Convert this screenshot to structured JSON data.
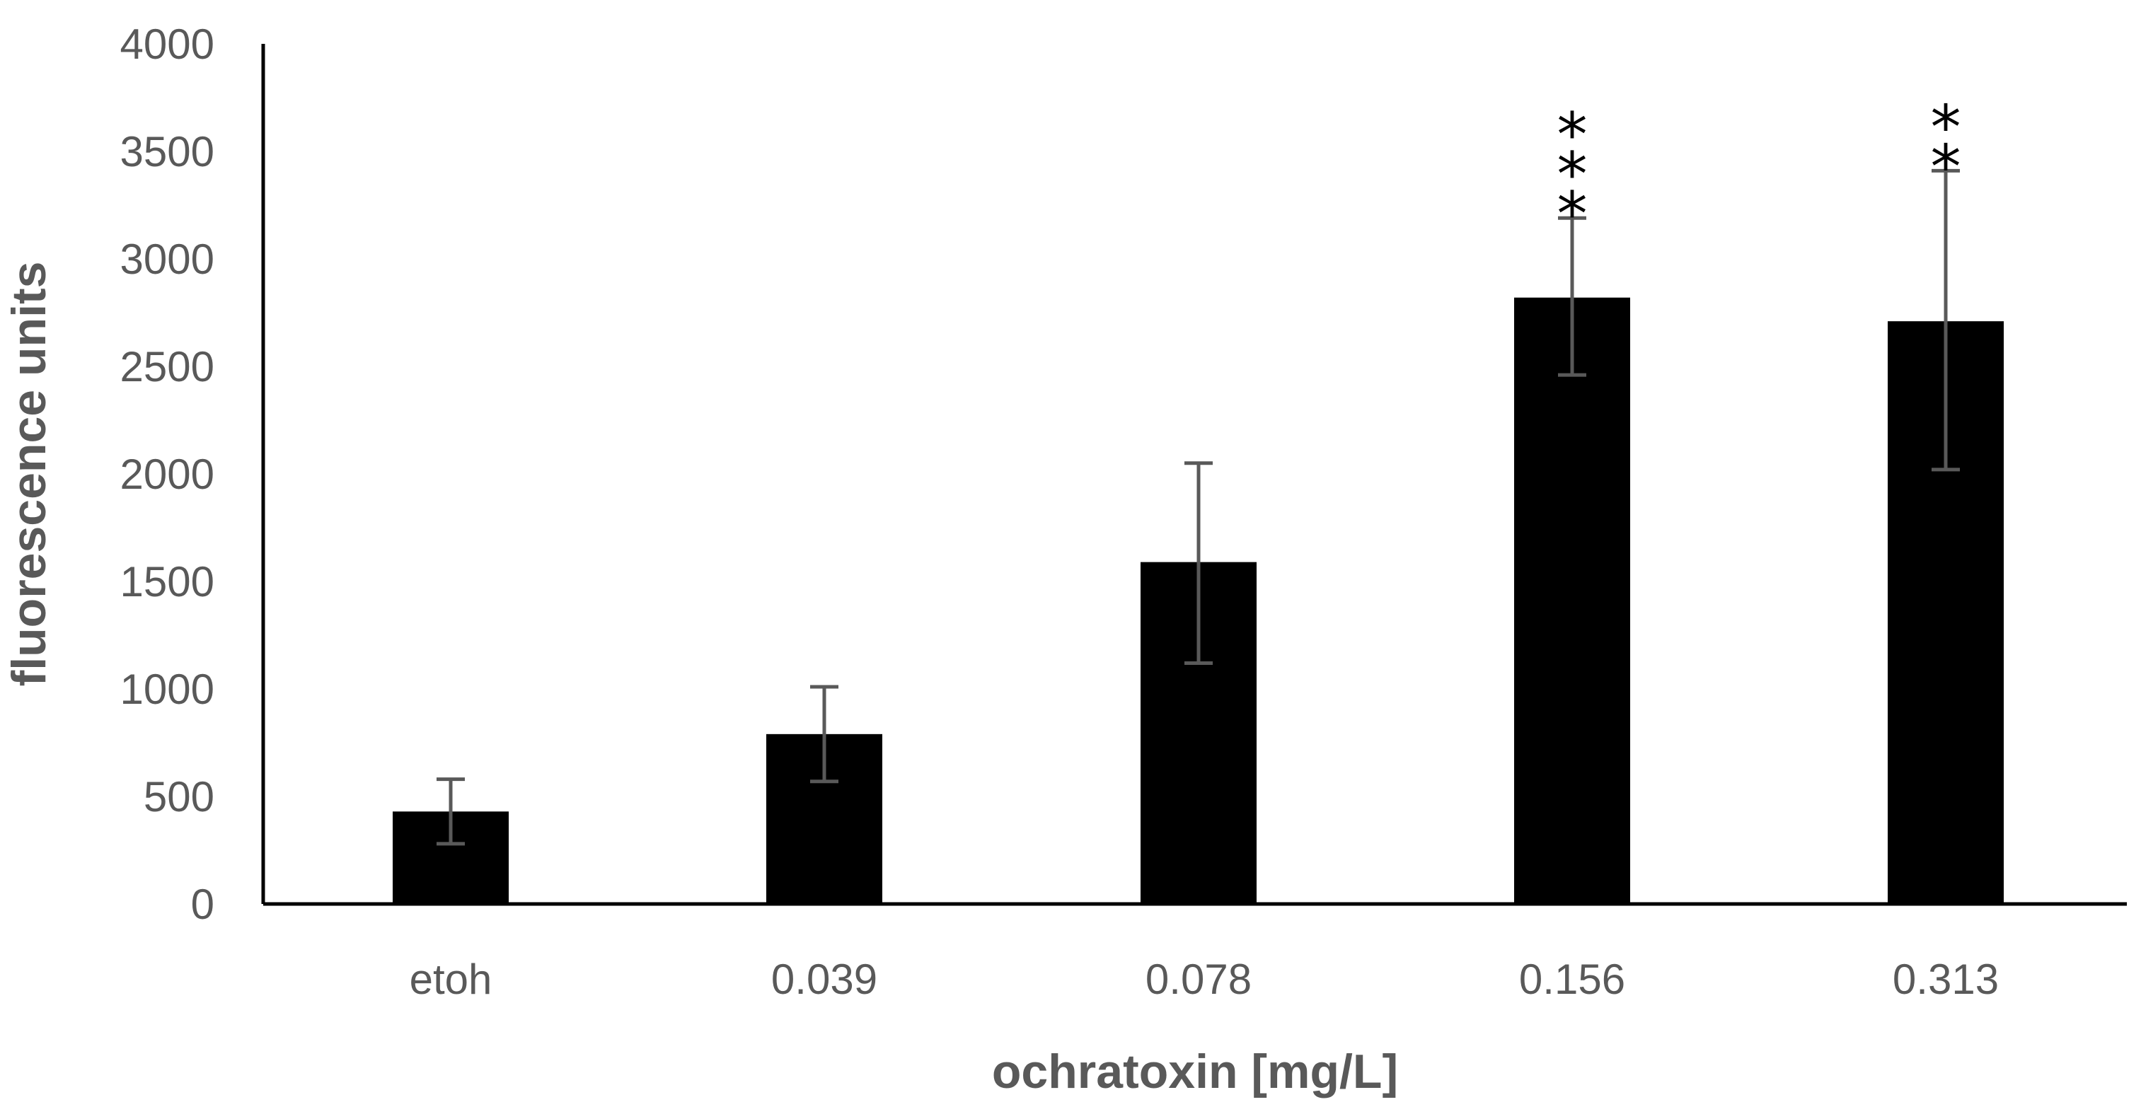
{
  "chart_data": {
    "type": "bar",
    "title": "",
    "xlabel": "ochratoxin [mg/L]",
    "ylabel": "fluorescence units",
    "categories": [
      "etoh",
      "0.039",
      "0.078",
      "0.156",
      "0.313"
    ],
    "values": [
      430,
      790,
      1590,
      2820,
      2710
    ],
    "error_low": [
      280,
      570,
      1120,
      2460,
      2020
    ],
    "error_high": [
      580,
      1010,
      2050,
      3190,
      3410
    ],
    "significance": [
      "",
      "",
      "",
      "***",
      "**"
    ],
    "ylim": [
      0,
      4000
    ],
    "yticks": [
      "0",
      "500",
      "1000",
      "1500",
      "2000",
      "2500",
      "3000",
      "3500",
      "4000"
    ],
    "ytick_values": [
      0,
      500,
      1000,
      1500,
      2000,
      2500,
      3000,
      3500,
      4000
    ],
    "grid": false,
    "legend": "none",
    "bar_color": "#000000",
    "error_bar_color": "#595959",
    "axis_color": "#000000",
    "text_color": "#595959"
  }
}
